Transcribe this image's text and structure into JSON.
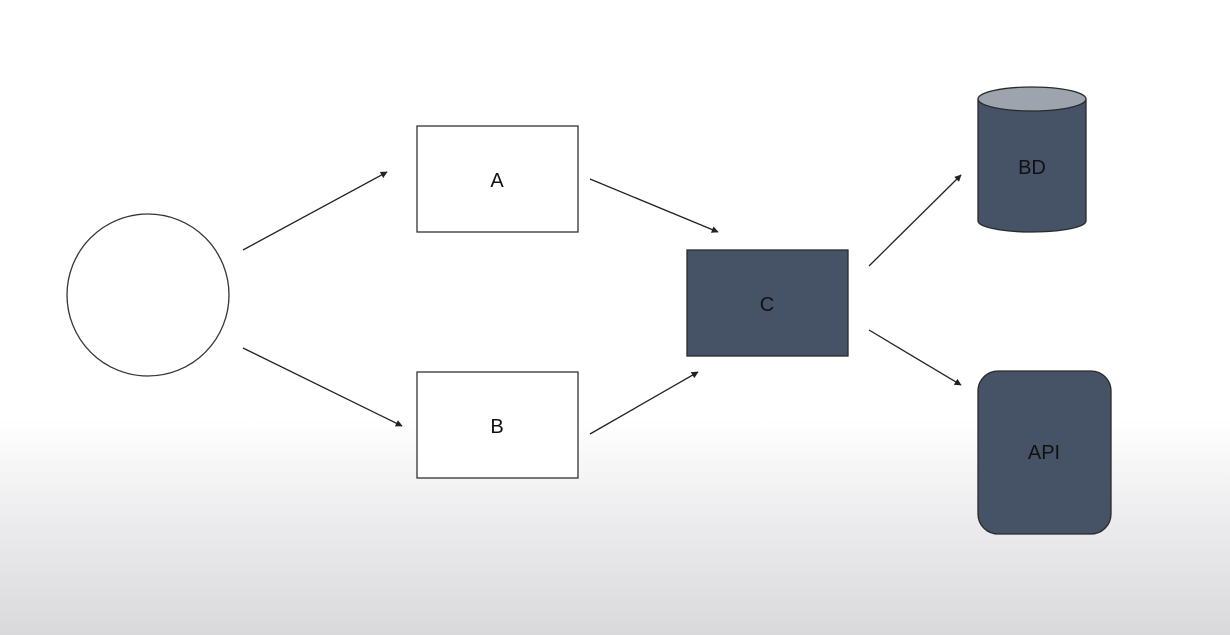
{
  "colors": {
    "dark_fill": "#465366",
    "cylinder_top": "#9da4ae",
    "outline": "#222222",
    "white": "#ffffff",
    "text": "#111111"
  },
  "nodes": {
    "start": {
      "shape": "circle",
      "label": ""
    },
    "a": {
      "shape": "rectangle",
      "label": "A"
    },
    "b": {
      "shape": "rectangle",
      "label": "B"
    },
    "c": {
      "shape": "rectangle",
      "label": "C"
    },
    "bd": {
      "shape": "cylinder",
      "label": "BD"
    },
    "api": {
      "shape": "rounded-rectangle",
      "label": "API"
    }
  },
  "edges": [
    {
      "from": "start",
      "to": "a"
    },
    {
      "from": "start",
      "to": "b"
    },
    {
      "from": "a",
      "to": "c"
    },
    {
      "from": "b",
      "to": "c"
    },
    {
      "from": "c",
      "to": "bd"
    },
    {
      "from": "c",
      "to": "api"
    }
  ]
}
